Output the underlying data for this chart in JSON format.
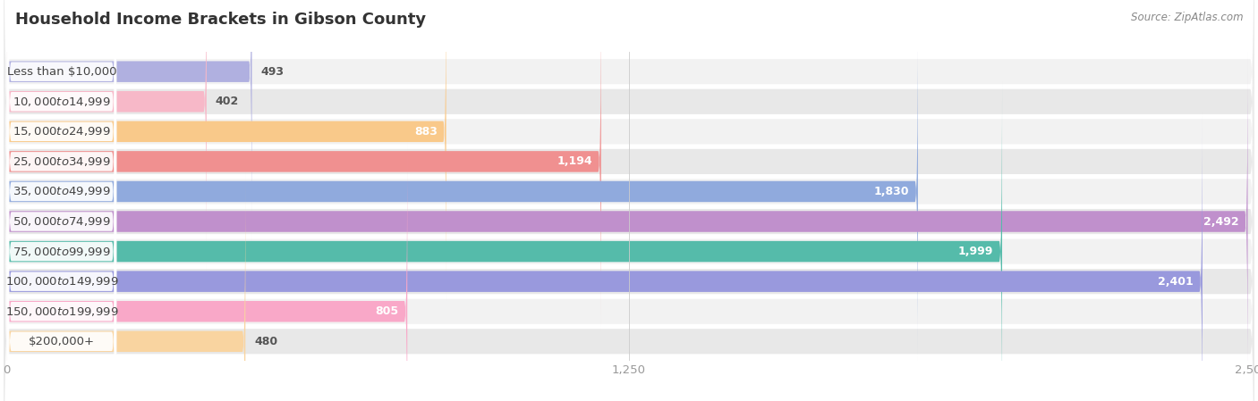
{
  "title": "Household Income Brackets in Gibson County",
  "source": "Source: ZipAtlas.com",
  "categories": [
    "Less than $10,000",
    "$10,000 to $14,999",
    "$15,000 to $24,999",
    "$25,000 to $34,999",
    "$35,000 to $49,999",
    "$50,000 to $74,999",
    "$75,000 to $99,999",
    "$100,000 to $149,999",
    "$150,000 to $199,999",
    "$200,000+"
  ],
  "values": [
    493,
    402,
    883,
    1194,
    1830,
    2492,
    1999,
    2401,
    805,
    480
  ],
  "bar_colors": [
    "#b0b0e0",
    "#f7b8c8",
    "#f9c98a",
    "#f09090",
    "#90aadd",
    "#c090cc",
    "#55bbaa",
    "#9999dd",
    "#f9a8c8",
    "#f9d4a0"
  ],
  "background_color": "#ffffff",
  "row_bg_colors": [
    "#f2f2f2",
    "#e8e8e8"
  ],
  "xlim": [
    0,
    2500
  ],
  "xticks": [
    0,
    1250,
    2500
  ],
  "title_fontsize": 13,
  "label_fontsize": 9.5,
  "value_fontsize": 9,
  "source_fontsize": 8.5,
  "title_color": "#333333",
  "label_color": "#444444",
  "value_color_inside": "#ffffff",
  "value_color_outside": "#555555",
  "tick_color": "#999999"
}
